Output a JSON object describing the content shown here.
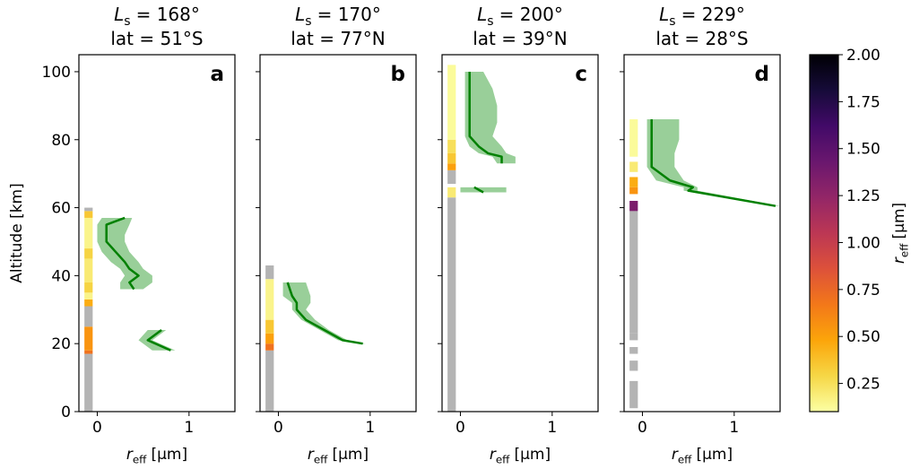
{
  "chart_data": [
    {
      "type": "line",
      "title_symbol": "L",
      "title_subscript": "s",
      "title_value": "= 168°",
      "subtitle": "lat = 51°S",
      "panel_label": "a",
      "xlabel_symbol": "r",
      "xlabel_subscript": "eff",
      "xlabel_unit": "[µm]",
      "ylabel": "Altitude [km]",
      "xlim": [
        -0.2,
        1.5
      ],
      "ylim": [
        0,
        105
      ],
      "xticks": [
        0,
        1
      ],
      "yticks": [
        0,
        20,
        40,
        60,
        80,
        100
      ],
      "show_ytick_labels": true,
      "line_color": "#008000",
      "band_color": "#99cf99",
      "no_data_color": "#b4b4b4",
      "altitude": [
        57,
        55,
        52,
        50,
        47,
        44,
        42,
        40,
        38,
        36,
        null,
        24,
        21,
        18
      ],
      "r_eff": [
        0.3,
        0.1,
        0.1,
        0.1,
        0.2,
        0.3,
        0.35,
        0.45,
        0.35,
        0.4,
        null,
        0.7,
        0.55,
        0.8
      ],
      "r_eff_lower": [
        0.05,
        0,
        0,
        0,
        0.05,
        0.15,
        0.25,
        0.3,
        0.25,
        0.25,
        null,
        0.55,
        0.45,
        0.6
      ],
      "r_eff_upper": [
        0.38,
        0.35,
        0.3,
        0.3,
        0.35,
        0.45,
        0.5,
        0.6,
        0.6,
        0.5,
        null,
        0.75,
        0.6,
        0.85
      ],
      "column_bottoms": [
        0,
        17,
        18,
        25,
        31,
        33,
        35,
        38,
        45,
        48,
        57,
        59
      ],
      "column_tops": [
        17,
        18,
        25,
        31,
        33,
        35,
        38,
        45,
        48,
        57,
        59,
        60
      ],
      "column_values": [
        null,
        0.7,
        0.55,
        null,
        0.45,
        0.15,
        0.3,
        0.2,
        0.3,
        0.15,
        0.35,
        null
      ]
    },
    {
      "type": "line",
      "title_symbol": "L",
      "title_subscript": "s",
      "title_value": "= 170°",
      "subtitle": "lat = 77°N",
      "panel_label": "b",
      "xlabel_symbol": "r",
      "xlabel_subscript": "eff",
      "xlabel_unit": "[µm]",
      "xlim": [
        -0.2,
        1.5
      ],
      "ylim": [
        0,
        105
      ],
      "xticks": [
        0,
        1
      ],
      "yticks": [
        0,
        20,
        40,
        60,
        80,
        100
      ],
      "show_ytick_labels": false,
      "line_color": "#008000",
      "band_color": "#99cf99",
      "no_data_color": "#b4b4b4",
      "altitude": [
        38,
        34,
        32,
        30,
        27,
        24,
        21,
        20
      ],
      "r_eff": [
        0.1,
        0.15,
        0.2,
        0.2,
        0.3,
        0.5,
        0.7,
        0.92
      ],
      "r_eff_lower": [
        0.05,
        0.05,
        0.15,
        0.15,
        0.25,
        0.45,
        0.65,
        0.9
      ],
      "r_eff_upper": [
        0.3,
        0.35,
        0.35,
        0.3,
        0.4,
        0.55,
        0.75,
        0.95
      ],
      "column_bottoms": [
        0,
        18,
        20,
        23,
        27,
        39
      ],
      "column_tops": [
        18,
        20,
        23,
        27,
        39,
        43
      ],
      "column_values": [
        null,
        0.7,
        0.5,
        0.35,
        0.15,
        null
      ]
    },
    {
      "type": "line",
      "title_symbol": "L",
      "title_subscript": "s",
      "title_value": "= 200°",
      "subtitle": "lat = 39°N",
      "panel_label": "c",
      "xlabel_symbol": "r",
      "xlabel_subscript": "eff",
      "xlabel_unit": "[µm]",
      "xlim": [
        -0.2,
        1.5
      ],
      "ylim": [
        0,
        105
      ],
      "xticks": [
        0,
        1
      ],
      "yticks": [
        0,
        20,
        40,
        60,
        80,
        100
      ],
      "show_ytick_labels": false,
      "line_color": "#008000",
      "band_color": "#99cf99",
      "no_data_color": "#b4b4b4",
      "altitude": [
        100,
        95,
        90,
        85,
        81,
        78,
        76,
        75,
        73,
        null,
        66,
        64.5
      ],
      "r_eff": [
        0.1,
        0.1,
        0.1,
        0.1,
        0.1,
        0.2,
        0.3,
        0.45,
        0.45,
        null,
        0.15,
        0.25
      ],
      "r_eff_lower": [
        0.05,
        0.05,
        0.05,
        0.05,
        0.05,
        0.1,
        0.2,
        0.35,
        0.4,
        null,
        0,
        0
      ],
      "r_eff_upper": [
        0.25,
        0.35,
        0.4,
        0.4,
        0.35,
        0.45,
        0.5,
        0.6,
        0.6,
        null,
        0.5,
        0.5
      ],
      "column_bottoms": [
        0,
        63,
        67,
        71,
        73,
        76,
        80
      ],
      "column_tops": [
        63,
        66,
        71,
        73,
        76,
        80,
        102
      ],
      "column_values": [
        null,
        0.2,
        null,
        0.5,
        0.35,
        0.25,
        0.12
      ]
    },
    {
      "type": "line",
      "title_symbol": "L",
      "title_subscript": "s",
      "title_value": "= 229°",
      "subtitle": "lat = 28°S",
      "panel_label": "d",
      "xlabel_symbol": "r",
      "xlabel_subscript": "eff",
      "xlabel_unit": "[µm]",
      "xlim": [
        -0.2,
        1.5
      ],
      "ylim": [
        0,
        105
      ],
      "xticks": [
        0,
        1
      ],
      "yticks": [
        0,
        20,
        40,
        60,
        80,
        100
      ],
      "show_ytick_labels": false,
      "line_color": "#008000",
      "band_color": "#99cf99",
      "no_data_color": "#b4b4b4",
      "altitude": [
        86,
        80,
        76,
        72,
        68,
        66,
        65,
        60.5
      ],
      "r_eff": [
        0.1,
        0.1,
        0.1,
        0.1,
        0.3,
        0.55,
        0.5,
        1.45
      ],
      "r_eff_lower": [
        0.05,
        0.05,
        0.05,
        0.05,
        0.15,
        0.45,
        0.45,
        1.4
      ],
      "r_eff_upper": [
        0.4,
        0.4,
        0.35,
        0.35,
        0.45,
        0.6,
        0.6,
        1.5
      ],
      "column_bottoms": [
        1,
        12,
        17,
        21,
        23,
        59,
        64,
        66,
        70.5,
        75
      ],
      "column_tops": [
        9,
        15,
        19,
        23,
        59,
        62,
        66,
        69,
        73.5,
        86
      ],
      "column_values": [
        null,
        null,
        null,
        null,
        null,
        1.35,
        0.55,
        0.45,
        0.2,
        0.12
      ]
    }
  ],
  "colorbar": {
    "label_symbol": "r",
    "label_subscript": "eff",
    "label_unit": "[µm]",
    "clim": [
      0.1,
      2.0
    ],
    "ticks": [
      0.25,
      {
        "value": 0.5,
        "label": "0.50"
      },
      0.75,
      {
        "value": 1.0,
        "label": "1.00"
      },
      1.25,
      {
        "value": 1.5,
        "label": "1.50"
      },
      1.75,
      {
        "value": 2.0,
        "label": "2.00"
      }
    ],
    "colors": [
      "#fcffa4",
      "#f6d746",
      "#fca50a",
      "#f37819",
      "#dd513a",
      "#bc3754",
      "#932667",
      "#6a176e",
      "#420a68",
      "#160b39",
      "#000004"
    ]
  }
}
